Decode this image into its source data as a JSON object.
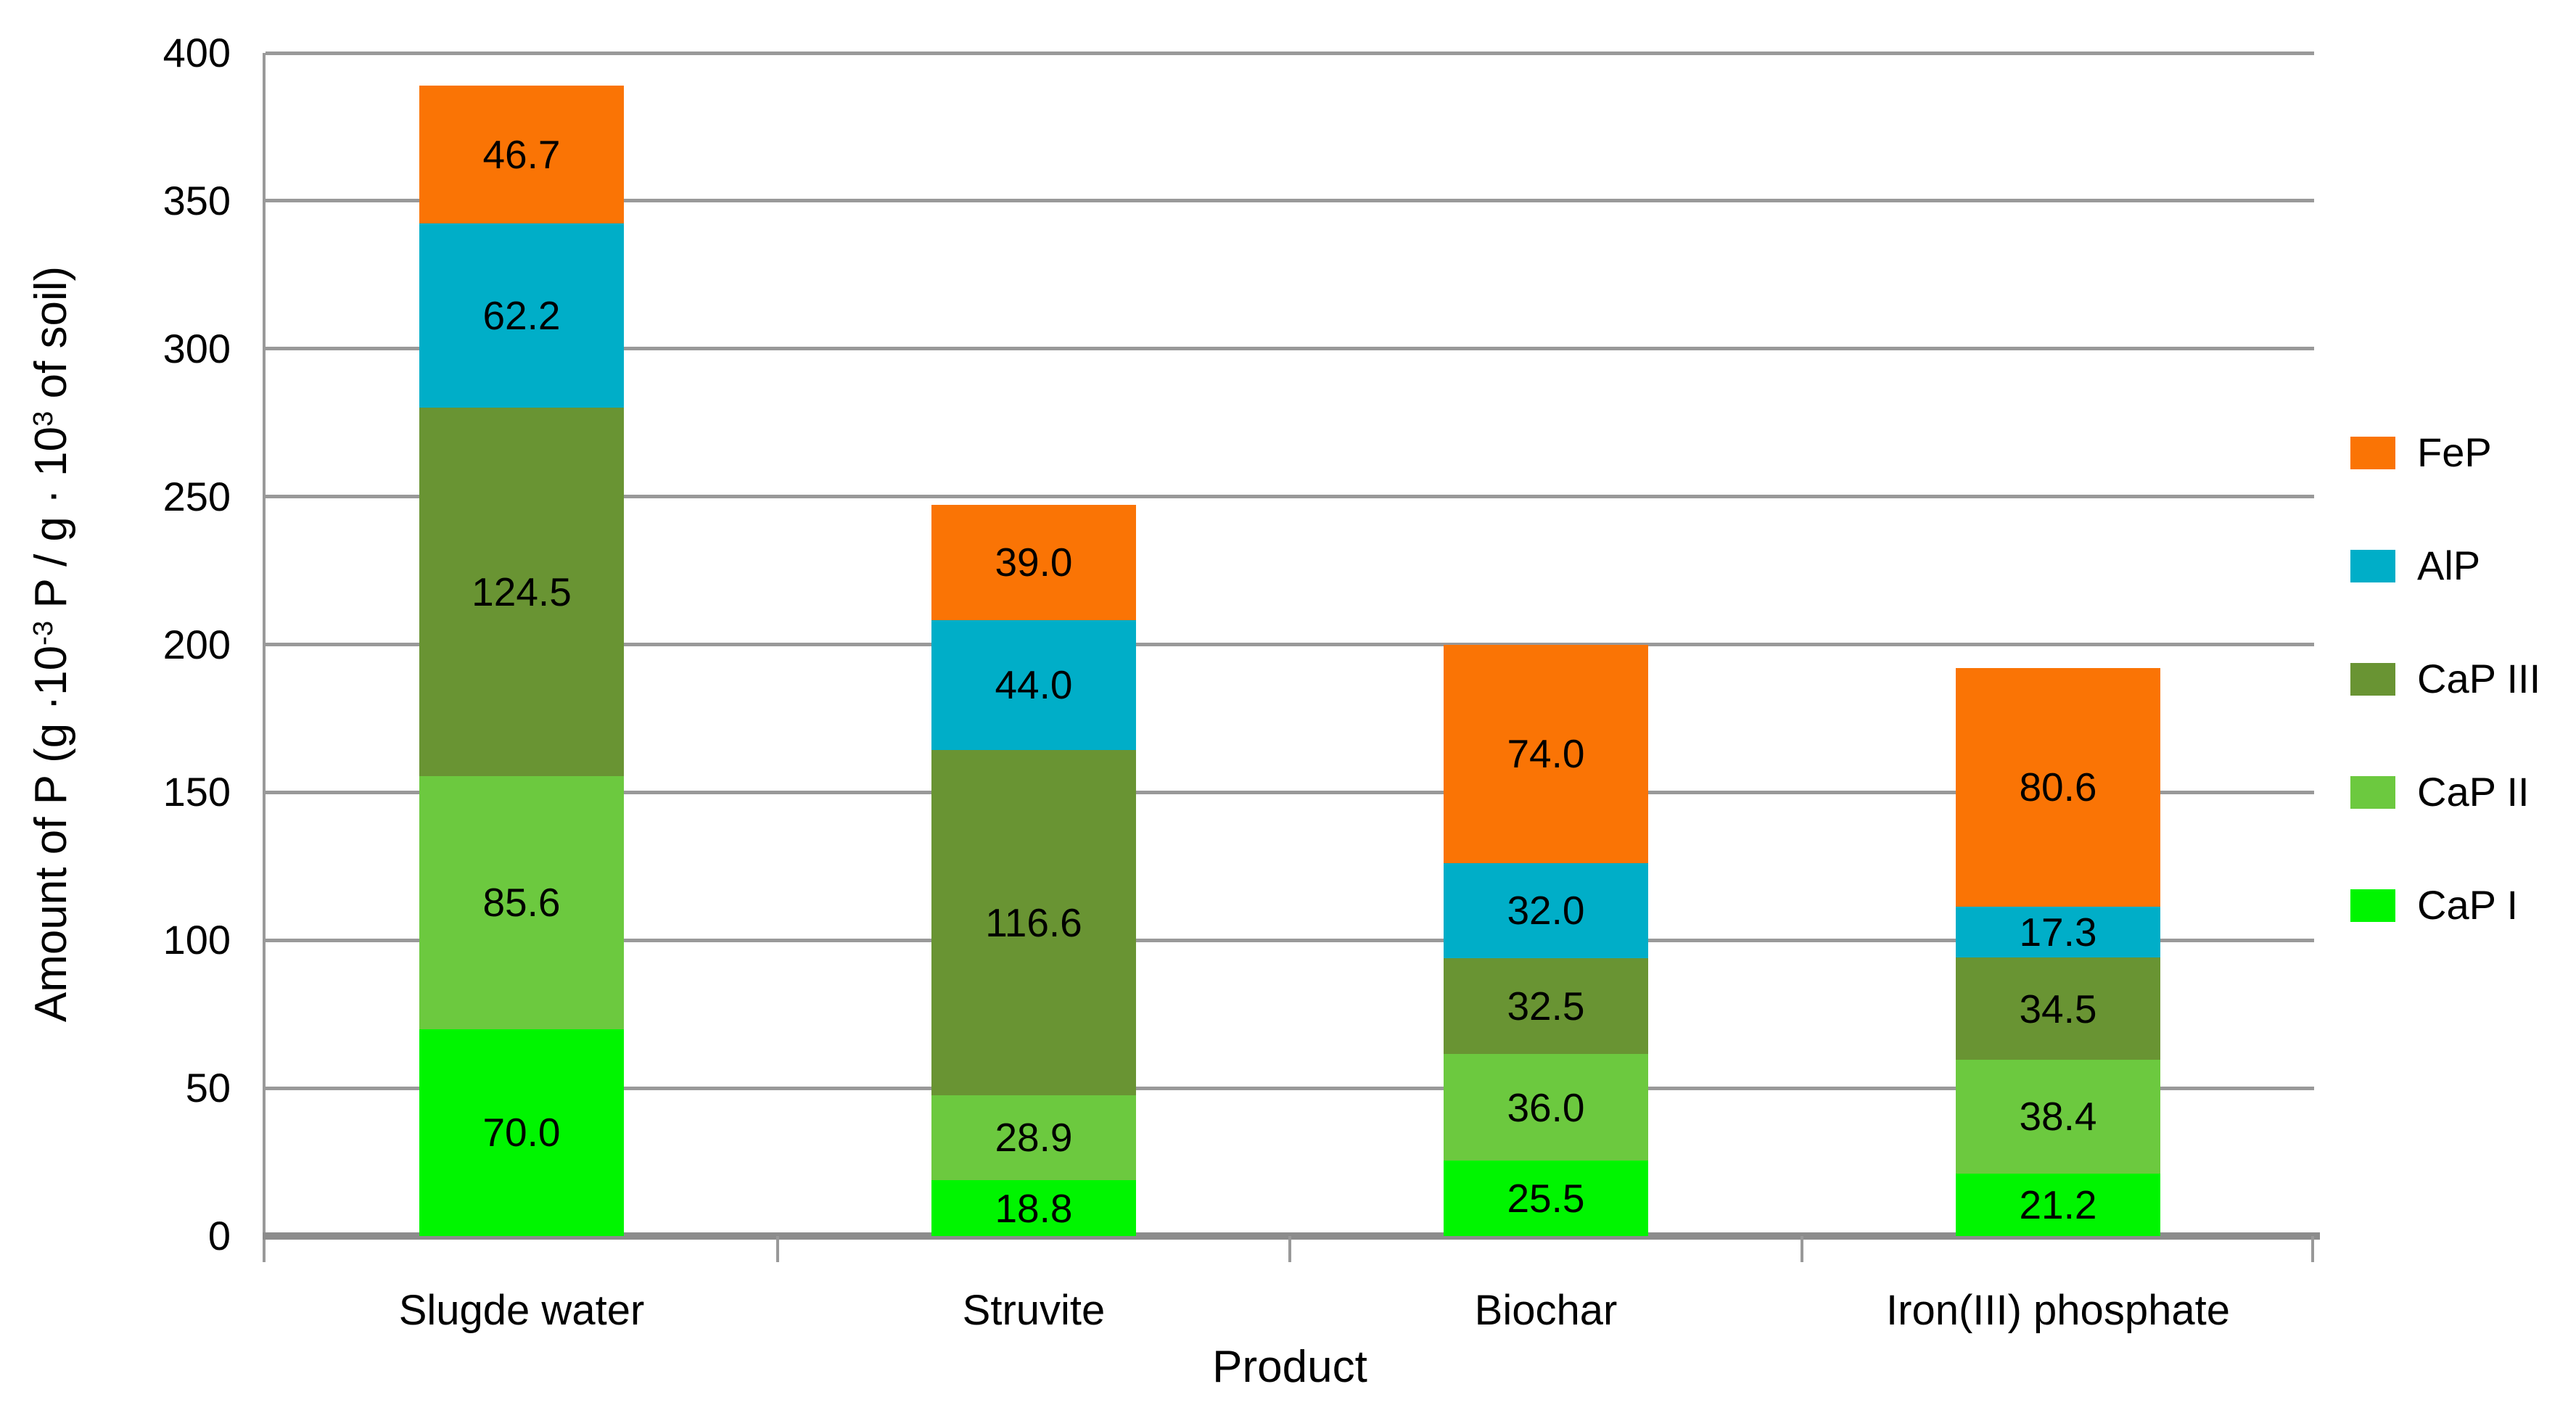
{
  "chart_data": {
    "type": "bar",
    "stacked": true,
    "title": "",
    "xlabel": "Product",
    "ylabel_text": "Amount of P (g ·10-3 P / g · 103 of soil)",
    "ylabel_parts": [
      {
        "text": "Amount of P (g ·10"
      },
      {
        "text": "-3",
        "sup": true
      },
      {
        "text": " P / g · 10"
      },
      {
        "text": "3",
        "sup": true
      },
      {
        "text": " of soil)"
      }
    ],
    "categories": [
      "Slugde water",
      "Struvite",
      "Biochar",
      "Iron(III) phosphate"
    ],
    "series": [
      {
        "name": "CaP I",
        "color": "#00F500",
        "values": [
          70.0,
          18.8,
          25.5,
          21.2
        ]
      },
      {
        "name": "CaP II",
        "color": "#6CC93F",
        "values": [
          85.6,
          28.9,
          36.0,
          38.4
        ]
      },
      {
        "name": "CaP III",
        "color": "#699433",
        "values": [
          124.5,
          116.6,
          32.5,
          34.5
        ]
      },
      {
        "name": "AlP",
        "color": "#00AEC8",
        "values": [
          62.2,
          44.0,
          32.0,
          17.3
        ]
      },
      {
        "name": "FeP",
        "color": "#FA7405",
        "values": [
          46.7,
          39.0,
          74.0,
          80.6
        ]
      }
    ],
    "value_label_decimals": 1,
    "ylim": [
      0,
      400
    ],
    "ytick_step": 50,
    "yticks": [
      0,
      50,
      100,
      150,
      200,
      250,
      300,
      350,
      400
    ],
    "grid": true,
    "legend_position": "right",
    "legend_order_top_to_bottom": [
      "FeP",
      "AlP",
      "CaP III",
      "CaP II",
      "CaP I"
    ],
    "colors": {
      "gridline": "#999999",
      "axis": "#999999",
      "baseline": "#8C8C8C",
      "text": "#000000",
      "background": "#FFFFFF"
    }
  }
}
